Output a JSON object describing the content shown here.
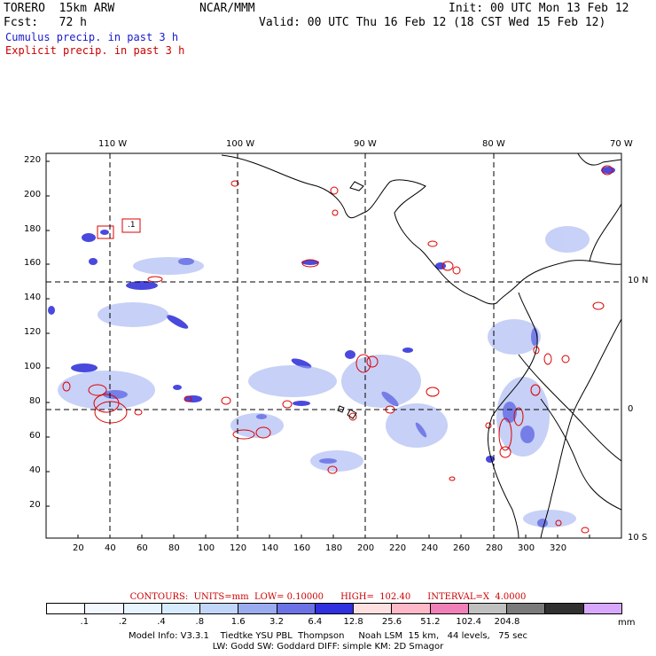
{
  "header": {
    "model": "TORERO  15km ARW",
    "org": "NCAR/MMM",
    "init": "Init: 00 UTC Mon 13 Feb 12",
    "fcst": "Fcst:   72 h",
    "valid": "Valid: 00 UTC Thu 16 Feb 12 (18 CST Wed 15 Feb 12)",
    "line_cumulus": "Cumulus precip. in past 3 h",
    "line_explicit": "Explicit precip. in past 3 h"
  },
  "colors": {
    "cumulus": "#2020cc",
    "explicit": "#dd0000",
    "coast": "#000000"
  },
  "map": {
    "lon_labels": [
      "110 W",
      "100 W",
      "90 W",
      "80 W",
      "70 W"
    ],
    "lat_labels": [
      "10 N",
      "0",
      "10 S"
    ],
    "x_ticks": [
      "20",
      "40",
      "60",
      "80",
      "100",
      "120",
      "140",
      "160",
      "180",
      "200",
      "220",
      "240",
      "260",
      "280",
      "300",
      "320"
    ],
    "y_ticks": [
      "220",
      "200",
      "180",
      "160",
      "140",
      "120",
      "100",
      "80",
      "60",
      "40",
      "20"
    ],
    "box_label": ".1"
  },
  "legend": {
    "contours": "CONTOURS:  UNITS=mm  LOW= 0.10000      HIGH=  102.40      INTERVAL=X  4.0000",
    "colors": [
      "#ffffff",
      "#f4f9ff",
      "#e6f5ff",
      "#d8ecff",
      "#c2d6f9",
      "#9aabf0",
      "#6a72e6",
      "#3030e0",
      "#ffe0e0",
      "#ffb8c8",
      "#f080b8",
      "#c0c0c0",
      "#7a7a7a",
      "#303030",
      "#d8a8ff"
    ],
    "tick_labels": [
      ".1",
      ".2",
      ".4",
      ".8",
      "1.6",
      "3.2",
      "6.4",
      "12.8",
      "25.6",
      "51.2",
      "102.4",
      "204.8"
    ],
    "units": "mm"
  },
  "footer": {
    "line1": "Model Info: V3.3.1    Tiedtke YSU PBL  Thompson     Noah LSM  15 km,   44 levels,   75 sec",
    "line2": "LW: Godd SW: Goddard DIFF: simple KM: 2D Smagor"
  }
}
